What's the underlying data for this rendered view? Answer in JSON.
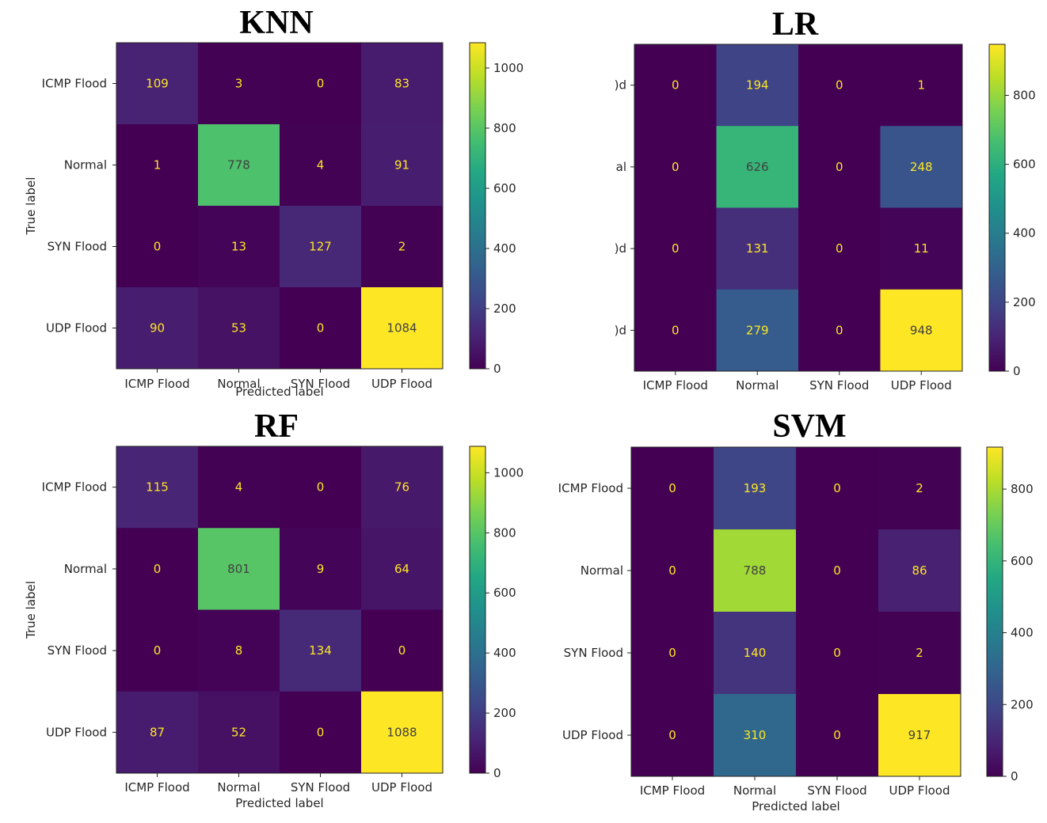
{
  "chart_data": [
    {
      "type": "heatmap",
      "title": "KNN",
      "xlabel": "Predicted label",
      "ylabel": "True label",
      "categories_x": [
        "ICMP Flood",
        "Normal",
        "SYN Flood",
        "UDP Flood"
      ],
      "categories_y": [
        "ICMP Flood",
        "Normal",
        "SYN Flood",
        "UDP Flood"
      ],
      "values": [
        [
          109,
          3,
          0,
          83
        ],
        [
          1,
          778,
          4,
          91
        ],
        [
          0,
          13,
          127,
          2
        ],
        [
          90,
          53,
          0,
          1084
        ]
      ],
      "colorbar": {
        "min": 0,
        "max": 1084,
        "ticks": [
          0,
          200,
          400,
          600,
          800,
          1000
        ]
      },
      "colormap": "viridis"
    },
    {
      "type": "heatmap",
      "title": "LR",
      "xlabel": "",
      "ylabel": "",
      "categories_x": [
        "ICMP Flood",
        "Normal",
        "SYN Flood",
        "UDP Flood"
      ],
      "categories_y": [
        ")d",
        "al",
        ")d",
        ")d"
      ],
      "values": [
        [
          0,
          194,
          0,
          1
        ],
        [
          0,
          626,
          0,
          248
        ],
        [
          0,
          131,
          0,
          11
        ],
        [
          0,
          279,
          0,
          948
        ]
      ],
      "colorbar": {
        "min": 0,
        "max": 948,
        "ticks": [
          0,
          200,
          400,
          600,
          800
        ]
      },
      "colormap": "viridis"
    },
    {
      "type": "heatmap",
      "title": "RF",
      "xlabel": "Predicted label",
      "ylabel": "True label",
      "categories_x": [
        "ICMP Flood",
        "Normal",
        "SYN Flood",
        "UDP Flood"
      ],
      "categories_y": [
        "ICMP Flood",
        "Normal",
        "SYN Flood",
        "UDP Flood"
      ],
      "values": [
        [
          115,
          4,
          0,
          76
        ],
        [
          0,
          801,
          9,
          64
        ],
        [
          0,
          8,
          134,
          0
        ],
        [
          87,
          52,
          0,
          1088
        ]
      ],
      "colorbar": {
        "min": 0,
        "max": 1088,
        "ticks": [
          0,
          200,
          400,
          600,
          800,
          1000
        ]
      },
      "colormap": "viridis"
    },
    {
      "type": "heatmap",
      "title": "SVM",
      "xlabel": "Predicted label",
      "ylabel": "",
      "categories_x": [
        "ICMP Flood",
        "Normal",
        "SYN Flood",
        "UDP Flood"
      ],
      "categories_y": [
        "ICMP Flood",
        "Normal",
        "SYN Flood",
        "UDP Flood"
      ],
      "values": [
        [
          0,
          193,
          0,
          2
        ],
        [
          0,
          788,
          0,
          86
        ],
        [
          0,
          140,
          0,
          2
        ],
        [
          0,
          310,
          0,
          917
        ]
      ],
      "colorbar": {
        "min": 0,
        "max": 917,
        "ticks": [
          0,
          200,
          400,
          600,
          800
        ]
      },
      "colormap": "viridis"
    }
  ]
}
